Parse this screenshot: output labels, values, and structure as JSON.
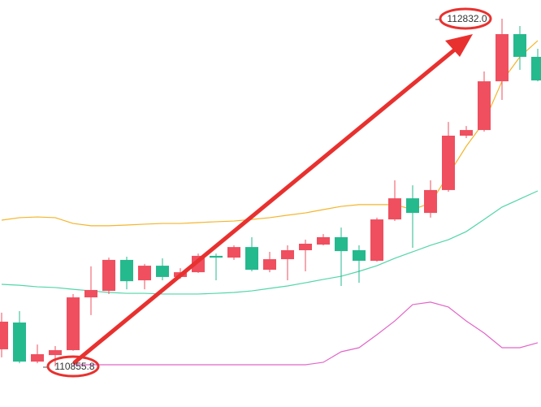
{
  "chart_data": {
    "type": "candlestick",
    "ylim": [
      110625,
      112938
    ],
    "up_color": "#ef4f5f",
    "down_color": "#25b98e",
    "candles": [
      {
        "open": 110953,
        "high": 111161,
        "low": 110907,
        "close": 111110
      },
      {
        "open": 111105,
        "high": 111170,
        "low": 110874,
        "close": 110883
      },
      {
        "open": 110883,
        "high": 110980,
        "low": 110874,
        "close": 110925
      },
      {
        "open": 110920,
        "high": 110971,
        "low": 110855.8,
        "close": 110948
      },
      {
        "open": 110948,
        "high": 111267,
        "low": 110944,
        "close": 111248
      },
      {
        "open": 111248,
        "high": 111424,
        "low": 111147,
        "close": 111290
      },
      {
        "open": 111285,
        "high": 111474,
        "low": 111267,
        "close": 111461
      },
      {
        "open": 111461,
        "high": 111479,
        "low": 111294,
        "close": 111340
      },
      {
        "open": 111345,
        "high": 111438,
        "low": 111294,
        "close": 111428
      },
      {
        "open": 111428,
        "high": 111470,
        "low": 111345,
        "close": 111364
      },
      {
        "open": 111364,
        "high": 111414,
        "low": 111354,
        "close": 111391
      },
      {
        "open": 111391,
        "high": 111497,
        "low": 111387,
        "close": 111484
      },
      {
        "open": 111484,
        "high": 111497,
        "low": 111345,
        "close": 111474
      },
      {
        "open": 111474,
        "high": 111544,
        "low": 111461,
        "close": 111534
      },
      {
        "open": 111534,
        "high": 111590,
        "low": 111396,
        "close": 111405
      },
      {
        "open": 111405,
        "high": 111507,
        "low": 111391,
        "close": 111465
      },
      {
        "open": 111465,
        "high": 111544,
        "low": 111345,
        "close": 111516
      },
      {
        "open": 111516,
        "high": 111576,
        "low": 111396,
        "close": 111553
      },
      {
        "open": 111548,
        "high": 111608,
        "low": 111544,
        "close": 111590
      },
      {
        "open": 111590,
        "high": 111645,
        "low": 111313,
        "close": 111511
      },
      {
        "open": 111516,
        "high": 111544,
        "low": 111331,
        "close": 111456
      },
      {
        "open": 111456,
        "high": 111701,
        "low": 111451,
        "close": 111691
      },
      {
        "open": 111691,
        "high": 111913,
        "low": 111682,
        "close": 111811
      },
      {
        "open": 111811,
        "high": 111885,
        "low": 111530,
        "close": 111728
      },
      {
        "open": 111728,
        "high": 111913,
        "low": 111701,
        "close": 111858
      },
      {
        "open": 111858,
        "high": 112245,
        "low": 111848,
        "close": 112167
      },
      {
        "open": 112167,
        "high": 112222,
        "low": 112153,
        "close": 112199
      },
      {
        "open": 112199,
        "high": 112532,
        "low": 112190,
        "close": 112476
      },
      {
        "open": 112476,
        "high": 112832.0,
        "low": 112370,
        "close": 112744
      },
      {
        "open": 112744,
        "high": 112790,
        "low": 112541,
        "close": 112615
      },
      {
        "open": 112615,
        "high": 112661,
        "low": 112476,
        "close": 112481
      }
    ],
    "lines": [
      {
        "color": "#f4b52c",
        "values": [
          111687,
          111701,
          111705,
          111701,
          111668,
          111655,
          111655,
          111659,
          111664,
          111668,
          111668,
          111673,
          111678,
          111682,
          111691,
          111701,
          111715,
          111728,
          111747,
          111765,
          111775,
          111775,
          111775,
          111747,
          111784,
          111945,
          112107,
          112245,
          112476,
          112615,
          112707
        ]
      },
      {
        "color": "#52d6a8",
        "values": [
          111322,
          111317,
          111308,
          111304,
          111294,
          111285,
          111276,
          111271,
          111271,
          111267,
          111267,
          111267,
          111271,
          111276,
          111285,
          111299,
          111313,
          111331,
          111350,
          111368,
          111396,
          111428,
          111470,
          111507,
          111544,
          111576,
          111622,
          111691,
          111761,
          111807,
          111853
        ]
      },
      {
        "color": "#e266c8",
        "values": [
          null,
          null,
          null,
          null,
          110865,
          110865,
          110865,
          110865,
          110865,
          110865,
          110865,
          110865,
          110865,
          110865,
          110865,
          110865,
          110865,
          110865,
          110879,
          110939,
          110962,
          111036,
          111114,
          111207,
          111221,
          111193,
          111114,
          111045,
          110962,
          110962,
          110990
        ]
      }
    ],
    "annotations": [
      {
        "text": "112832.0",
        "value": 112832.0
      },
      {
        "text": "110855.8",
        "value": 110855.8
      }
    ]
  }
}
